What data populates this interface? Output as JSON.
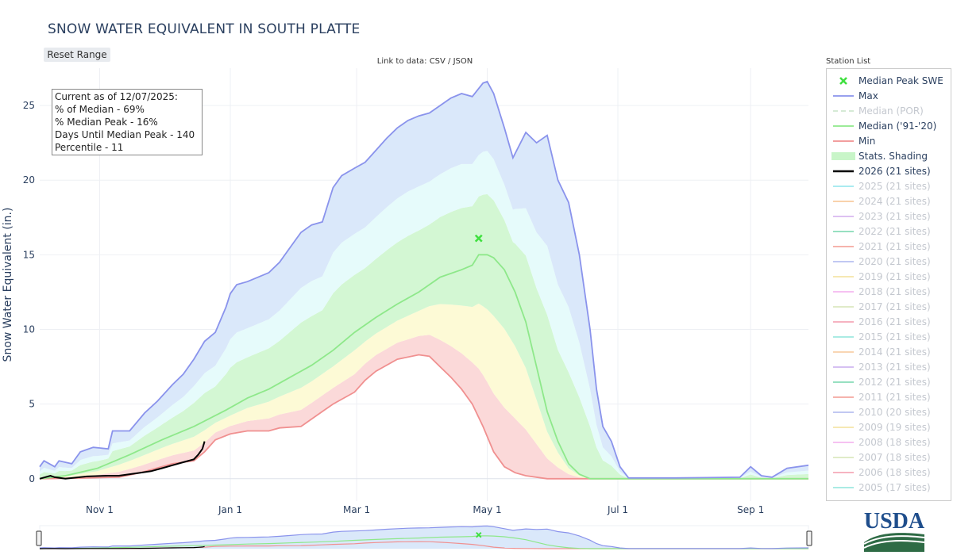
{
  "title": "SNOW WATER EQUIVALENT IN SOUTH PLATTE",
  "reset_label": "Reset Range",
  "data_link": "Link to data: CSV / JSON",
  "station_list": "Station List",
  "info": {
    "line1": "Current as of 12/07/2025:",
    "line2": "% of Median - 69%",
    "line3": "% Median Peak - 16%",
    "line4": "Days Until Median Peak - 140",
    "line5": "Percentile - 11"
  },
  "logo_text": "USDA",
  "colors": {
    "max": "#8a93ec",
    "median": "#8ee88a",
    "min": "#f09090",
    "current": "#000000",
    "peak_marker": "#40e040",
    "text": "#2a3f5f"
  },
  "legend": [
    {
      "label": "Median Peak SWE",
      "type": "marker",
      "color": "#40e040",
      "dim": false
    },
    {
      "label": "Max",
      "type": "line",
      "color": "#8a93ec",
      "dim": false
    },
    {
      "label": "Median (POR)",
      "type": "dash",
      "color": "#cfe8cf",
      "dim": true
    },
    {
      "label": "Median ('91-'20)",
      "type": "line",
      "color": "#8ee88a",
      "dim": false
    },
    {
      "label": "Min",
      "type": "line",
      "color": "#f09090",
      "dim": false
    },
    {
      "label": "Stats. Shading",
      "type": "fill",
      "color": "#c8f5c8",
      "dim": false
    },
    {
      "label": "2026 (21 sites)",
      "type": "bold",
      "color": "#000000",
      "dim": false
    },
    {
      "label": "2025 (21 sites)",
      "type": "line",
      "color": "#9ee8ee",
      "dim": true
    },
    {
      "label": "2024 (21 sites)",
      "type": "line",
      "color": "#f8cca0",
      "dim": true
    },
    {
      "label": "2023 (21 sites)",
      "type": "line",
      "color": "#d8b8f0",
      "dim": true
    },
    {
      "label": "2022 (21 sites)",
      "type": "line",
      "color": "#88dcb8",
      "dim": true
    },
    {
      "label": "2021 (21 sites)",
      "type": "line",
      "color": "#f4a8a0",
      "dim": true
    },
    {
      "label": "2020 (21 sites)",
      "type": "line",
      "color": "#b8c0f0",
      "dim": true
    },
    {
      "label": "2019 (21 sites)",
      "type": "line",
      "color": "#f4e4a8",
      "dim": true
    },
    {
      "label": "2018 (21 sites)",
      "type": "line",
      "color": "#f4b8f0",
      "dim": true
    },
    {
      "label": "2017 (21 sites)",
      "type": "line",
      "color": "#dce8c0",
      "dim": true
    },
    {
      "label": "2016 (21 sites)",
      "type": "line",
      "color": "#f4a8b8",
      "dim": true
    },
    {
      "label": "2015 (21 sites)",
      "type": "line",
      "color": "#9ee8e0",
      "dim": true
    },
    {
      "label": "2014 (21 sites)",
      "type": "line",
      "color": "#f8d0a8",
      "dim": true
    },
    {
      "label": "2013 (21 sites)",
      "type": "line",
      "color": "#d0b8f0",
      "dim": true
    },
    {
      "label": "2012 (21 sites)",
      "type": "line",
      "color": "#88dcb8",
      "dim": true
    },
    {
      "label": "2011 (21 sites)",
      "type": "line",
      "color": "#f4a8a0",
      "dim": true
    },
    {
      "label": "2010 (20 sites)",
      "type": "line",
      "color": "#b8c0f0",
      "dim": true
    },
    {
      "label": "2009 (19 sites)",
      "type": "line",
      "color": "#f4e4a8",
      "dim": true
    },
    {
      "label": "2008 (18 sites)",
      "type": "line",
      "color": "#f4b8f0",
      "dim": true
    },
    {
      "label": "2007 (18 sites)",
      "type": "line",
      "color": "#dce8c0",
      "dim": true
    },
    {
      "label": "2006 (18 sites)",
      "type": "line",
      "color": "#f4a8b8",
      "dim": true
    },
    {
      "label": "2005 (17 sites)",
      "type": "line",
      "color": "#9ee8e0",
      "dim": true
    }
  ],
  "chart_data": {
    "type": "area",
    "ylabel": "Snow Water Equivalent (in.)",
    "xlabel": "",
    "x_ticks": [
      "Nov 1",
      "Jan 1",
      "Mar 1",
      "May 1",
      "Jul 1",
      "Sep 1"
    ],
    "x_tick_days": [
      31,
      92,
      151,
      212,
      273,
      335
    ],
    "y_ticks": [
      0,
      5,
      10,
      15,
      20,
      25
    ],
    "ylim": [
      -1.5,
      27.5
    ],
    "xlim_days": [
      3,
      362
    ],
    "x_unit": "days since Oct 1",
    "grid": true,
    "series": [
      {
        "name": "Max",
        "points": [
          [
            3,
            0.8
          ],
          [
            5,
            1.2
          ],
          [
            10,
            0.8
          ],
          [
            12,
            1.2
          ],
          [
            18,
            1.0
          ],
          [
            22,
            1.8
          ],
          [
            28,
            2.1
          ],
          [
            35,
            2.0
          ],
          [
            37,
            3.2
          ],
          [
            45,
            3.2
          ],
          [
            52,
            4.4
          ],
          [
            58,
            5.2
          ],
          [
            65,
            6.3
          ],
          [
            70,
            7.0
          ],
          [
            75,
            8.0
          ],
          [
            80,
            9.2
          ],
          [
            85,
            9.8
          ],
          [
            90,
            11.5
          ],
          [
            92,
            12.4
          ],
          [
            95,
            13.0
          ],
          [
            100,
            13.2
          ],
          [
            105,
            13.5
          ],
          [
            110,
            13.8
          ],
          [
            115,
            14.5
          ],
          [
            120,
            15.5
          ],
          [
            125,
            16.5
          ],
          [
            130,
            17.0
          ],
          [
            135,
            17.2
          ],
          [
            140,
            19.5
          ],
          [
            144,
            20.3
          ],
          [
            150,
            20.8
          ],
          [
            155,
            21.2
          ],
          [
            160,
            22.0
          ],
          [
            165,
            22.8
          ],
          [
            170,
            23.5
          ],
          [
            175,
            24.0
          ],
          [
            180,
            24.3
          ],
          [
            185,
            24.5
          ],
          [
            190,
            25.0
          ],
          [
            195,
            25.5
          ],
          [
            200,
            25.8
          ],
          [
            205,
            25.6
          ],
          [
            210,
            26.5
          ],
          [
            212,
            26.6
          ],
          [
            215,
            25.8
          ],
          [
            220,
            23.5
          ],
          [
            224,
            21.5
          ],
          [
            230,
            23.2
          ],
          [
            235,
            22.5
          ],
          [
            240,
            23.0
          ],
          [
            245,
            20.0
          ],
          [
            250,
            18.5
          ],
          [
            255,
            15.0
          ],
          [
            260,
            10.0
          ],
          [
            263,
            6.0
          ],
          [
            266,
            3.5
          ],
          [
            270,
            2.5
          ],
          [
            274,
            0.8
          ],
          [
            278,
            0.05
          ],
          [
            300,
            0.05
          ],
          [
            330,
            0.1
          ],
          [
            335,
            0.8
          ],
          [
            340,
            0.2
          ],
          [
            345,
            0.1
          ],
          [
            352,
            0.7
          ],
          [
            362,
            0.9
          ]
        ]
      },
      {
        "name": "Median ('91-'20)",
        "points": [
          [
            3,
            0
          ],
          [
            15,
            0.2
          ],
          [
            30,
            0.7
          ],
          [
            45,
            1.6
          ],
          [
            60,
            2.6
          ],
          [
            75,
            3.5
          ],
          [
            90,
            4.6
          ],
          [
            100,
            5.4
          ],
          [
            110,
            6.0
          ],
          [
            120,
            6.8
          ],
          [
            130,
            7.6
          ],
          [
            140,
            8.6
          ],
          [
            150,
            9.8
          ],
          [
            160,
            10.8
          ],
          [
            170,
            11.7
          ],
          [
            180,
            12.5
          ],
          [
            190,
            13.5
          ],
          [
            200,
            14.0
          ],
          [
            205,
            14.3
          ],
          [
            208,
            15.0
          ],
          [
            212,
            15.0
          ],
          [
            215,
            14.8
          ],
          [
            220,
            14.0
          ],
          [
            225,
            12.5
          ],
          [
            230,
            10.5
          ],
          [
            235,
            7.5
          ],
          [
            240,
            4.5
          ],
          [
            245,
            2.5
          ],
          [
            250,
            1.0
          ],
          [
            255,
            0.3
          ],
          [
            260,
            0
          ],
          [
            362,
            0
          ]
        ]
      },
      {
        "name": "Min",
        "points": [
          [
            3,
            0
          ],
          [
            25,
            0.05
          ],
          [
            40,
            0.1
          ],
          [
            50,
            0.4
          ],
          [
            55,
            0.6
          ],
          [
            65,
            1.0
          ],
          [
            75,
            1.2
          ],
          [
            80,
            1.8
          ],
          [
            85,
            2.6
          ],
          [
            92,
            3.0
          ],
          [
            100,
            3.2
          ],
          [
            110,
            3.2
          ],
          [
            115,
            3.4
          ],
          [
            125,
            3.5
          ],
          [
            135,
            4.5
          ],
          [
            140,
            5.0
          ],
          [
            150,
            5.8
          ],
          [
            155,
            6.6
          ],
          [
            160,
            7.2
          ],
          [
            170,
            8.0
          ],
          [
            180,
            8.3
          ],
          [
            185,
            8.2
          ],
          [
            190,
            7.5
          ],
          [
            195,
            6.8
          ],
          [
            200,
            6.0
          ],
          [
            205,
            5.0
          ],
          [
            210,
            3.5
          ],
          [
            215,
            1.8
          ],
          [
            220,
            0.8
          ],
          [
            225,
            0.4
          ],
          [
            230,
            0.2
          ],
          [
            240,
            0
          ],
          [
            362,
            0
          ]
        ]
      },
      {
        "name": "2026 (21 sites)",
        "points": [
          [
            3,
            0
          ],
          [
            8,
            0.2
          ],
          [
            10,
            0.1
          ],
          [
            15,
            0
          ],
          [
            25,
            0.15
          ],
          [
            35,
            0.2
          ],
          [
            40,
            0.2
          ],
          [
            45,
            0.3
          ],
          [
            50,
            0.4
          ],
          [
            55,
            0.5
          ],
          [
            60,
            0.7
          ],
          [
            65,
            0.9
          ],
          [
            70,
            1.1
          ],
          [
            75,
            1.3
          ],
          [
            77,
            1.6
          ],
          [
            79,
            2.0
          ],
          [
            80,
            2.5
          ]
        ]
      }
    ],
    "median_peak": {
      "x": 208,
      "y": 16.1
    }
  }
}
